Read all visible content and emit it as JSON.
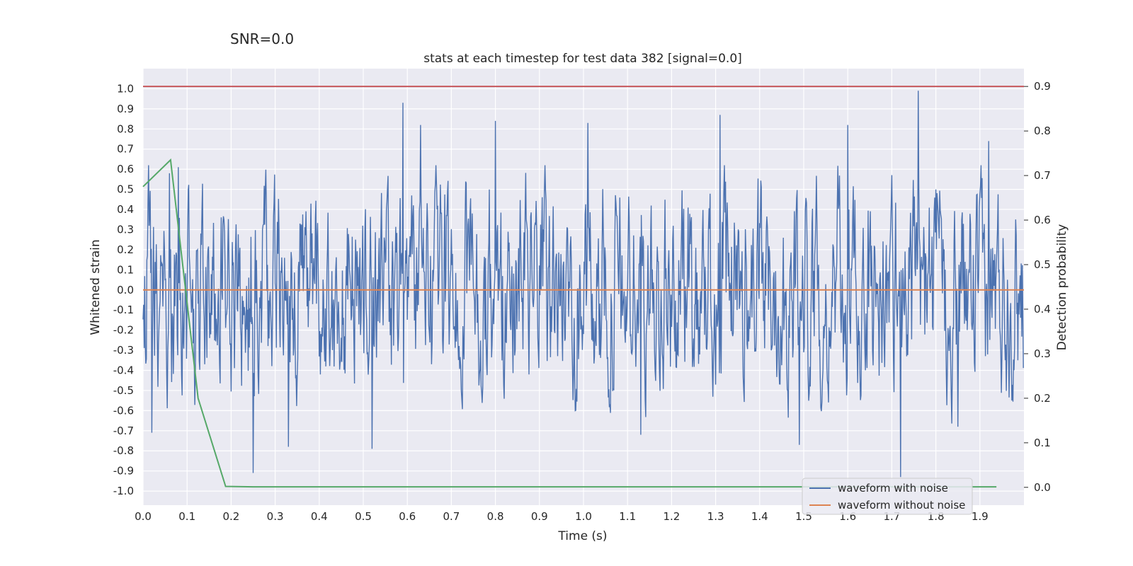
{
  "chart_data": {
    "type": "line",
    "suptitle": "SNR=0.0",
    "title": "stats at each timestep for test data 382 [signal=0.0]",
    "xlabel": "Time (s)",
    "ylabel": "Whitened strain",
    "y2label": "Detection probability",
    "xlim": [
      0.0,
      2.0
    ],
    "ylim": [
      -1.07,
      1.1
    ],
    "y2lim": [
      -0.04,
      0.94
    ],
    "x_ticks": [
      0.0,
      0.1,
      0.2,
      0.3,
      0.4,
      0.5,
      0.6,
      0.7,
      0.8,
      0.9,
      1.0,
      1.1,
      1.2,
      1.3,
      1.4,
      1.5,
      1.6,
      1.7,
      1.8,
      1.9
    ],
    "y_ticks": [
      1.0,
      0.9,
      0.8,
      0.7,
      0.6,
      0.5,
      0.4,
      0.3,
      0.2,
      0.1,
      0.0,
      -0.1,
      -0.2,
      -0.3,
      -0.4,
      -0.5,
      -0.6,
      -0.7,
      -0.8,
      -0.9,
      -1.0
    ],
    "y2_ticks": [
      0.9,
      0.8,
      0.7,
      0.6,
      0.5,
      0.4,
      0.3,
      0.2,
      0.1,
      0.0
    ],
    "grid": true,
    "legend_position": "lower-right",
    "colors": {
      "background": "#eaeaf2",
      "grid": "#ffffff",
      "noisy": "#4c72b0",
      "clean": "#dd8452",
      "prob": "#55a868",
      "threshold": "#c44e52"
    },
    "series": [
      {
        "name": "waveform with noise",
        "axis": "left",
        "description_points": "noisy whitened strain, 4096 samples over 2 s, envelope approx -0.95 to 1.0",
        "peaks": [
          [
            0.06,
            0.58
          ],
          [
            0.08,
            0.61
          ],
          [
            0.59,
            0.93
          ],
          [
            0.63,
            0.82
          ],
          [
            0.8,
            0.84
          ],
          [
            1.01,
            0.83
          ],
          [
            1.31,
            0.87
          ],
          [
            1.6,
            0.82
          ],
          [
            1.76,
            0.99
          ],
          [
            1.92,
            0.74
          ]
        ],
        "troughs": [
          [
            0.02,
            -0.71
          ],
          [
            0.25,
            -0.91
          ],
          [
            0.33,
            -0.78
          ],
          [
            0.52,
            -0.79
          ],
          [
            1.13,
            -0.72
          ],
          [
            1.49,
            -0.77
          ],
          [
            1.72,
            -0.93
          ],
          [
            1.85,
            -0.68
          ]
        ]
      },
      {
        "name": "waveform without noise",
        "axis": "left",
        "x": [
          0.0,
          2.0
        ],
        "y": [
          0.0,
          0.0
        ]
      },
      {
        "name": "",
        "axis": "right",
        "x": [
          0.0,
          0.0625,
          0.125,
          0.1875,
          0.25,
          0.3125,
          0.375,
          0.4375,
          0.5,
          0.5625,
          0.625,
          0.6875,
          0.75,
          0.8125,
          0.875,
          0.9375,
          1.0,
          1.0625,
          1.125,
          1.1875,
          1.25,
          1.3125,
          1.375,
          1.4375,
          1.5,
          1.5625,
          1.625,
          1.6875,
          1.75,
          1.8125,
          1.875,
          1.9375
        ],
        "y": [
          0.675,
          0.735,
          0.2,
          0.002,
          0.001,
          0.001,
          0.001,
          0.001,
          0.001,
          0.001,
          0.001,
          0.001,
          0.001,
          0.001,
          0.001,
          0.001,
          0.001,
          0.001,
          0.001,
          0.001,
          0.001,
          0.001,
          0.001,
          0.001,
          0.001,
          0.001,
          0.001,
          0.001,
          0.001,
          0.001,
          0.001,
          0.001
        ]
      },
      {
        "name": "",
        "axis": "right",
        "x": [
          0.0,
          2.0
        ],
        "y": [
          0.9,
          0.9
        ]
      }
    ]
  }
}
